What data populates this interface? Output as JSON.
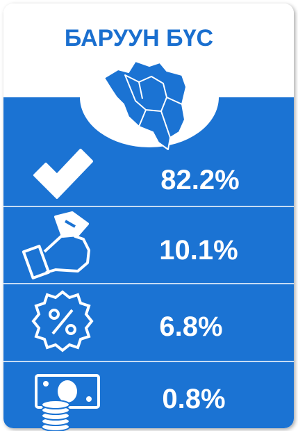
{
  "header": {
    "title": "БАРУУН БҮС"
  },
  "items": [
    {
      "value": "82.2%"
    },
    {
      "value": "10.1%"
    },
    {
      "value": "6.8%"
    },
    {
      "value": "0.8%"
    }
  ]
}
